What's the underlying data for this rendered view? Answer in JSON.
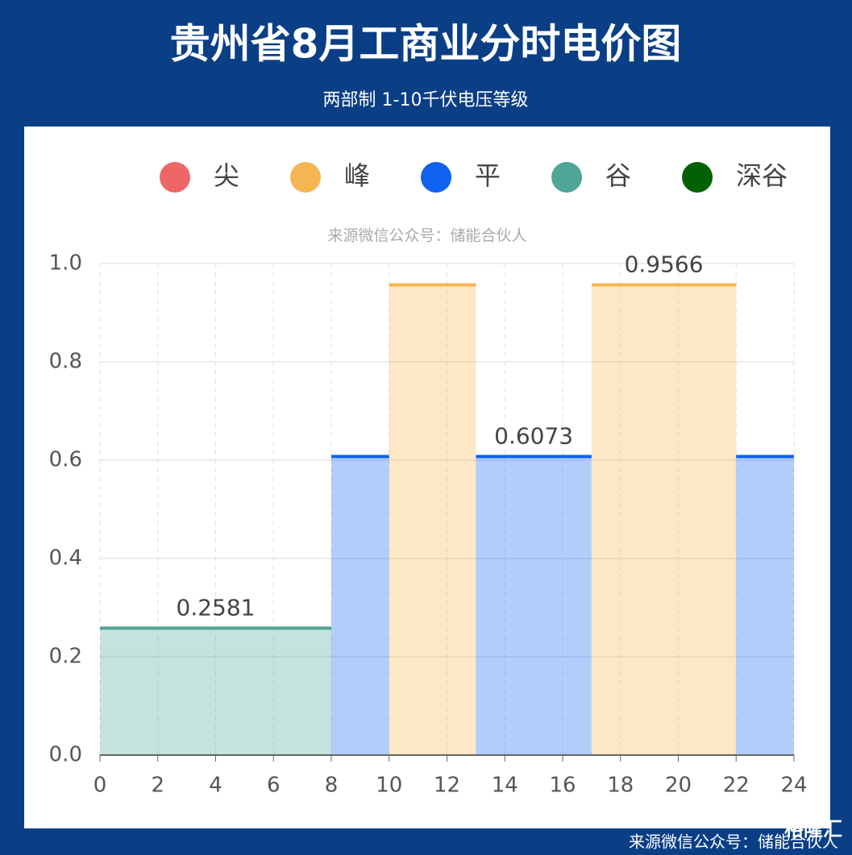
{
  "header": {
    "title": "贵州省8月工商业分时电价图",
    "subtitle": "两部制 1-10千伏电压等级"
  },
  "chart_data": {
    "type": "step-bar",
    "source": "来源微信公众号：储能合伙人",
    "series": [
      {
        "name": "尖",
        "color": "#ee6666",
        "x": [],
        "values": [],
        "value_labels": []
      },
      {
        "name": "峰",
        "color": "#f5b552",
        "x": [
          [
            10,
            13
          ],
          [
            17,
            22
          ]
        ],
        "values": [
          0.9566,
          0.9566
        ],
        "value_labels": [
          null,
          "0.9566"
        ]
      },
      {
        "name": "平",
        "color": "#0f62f0",
        "x": [
          [
            8,
            10
          ],
          [
            13,
            17
          ],
          [
            22,
            24
          ]
        ],
        "values": [
          0.6073,
          0.6073,
          0.6073
        ],
        "value_labels": [
          null,
          "0.6073",
          null
        ]
      },
      {
        "name": "谷",
        "color": "#4fa596",
        "x": [
          [
            0,
            8
          ]
        ],
        "values": [
          0.2581
        ],
        "value_labels": [
          "0.2581"
        ]
      },
      {
        "name": "深谷",
        "color": "#036104",
        "x": [],
        "values": [],
        "value_labels": []
      }
    ],
    "xlim": [
      0,
      24
    ],
    "xticks": [
      0,
      2,
      4,
      6,
      8,
      10,
      12,
      14,
      16,
      18,
      20,
      22,
      24
    ],
    "ylim": [
      0,
      1
    ],
    "yticks": [
      {
        "value": 0,
        "label": "0.0"
      },
      0.2,
      0.4,
      0.6,
      0.8,
      {
        "value": 1,
        "label": "1.0"
      }
    ],
    "grid": true
  },
  "footer": {
    "logo": "格隆汇",
    "source": "来源微信公众号：储能合伙人"
  }
}
